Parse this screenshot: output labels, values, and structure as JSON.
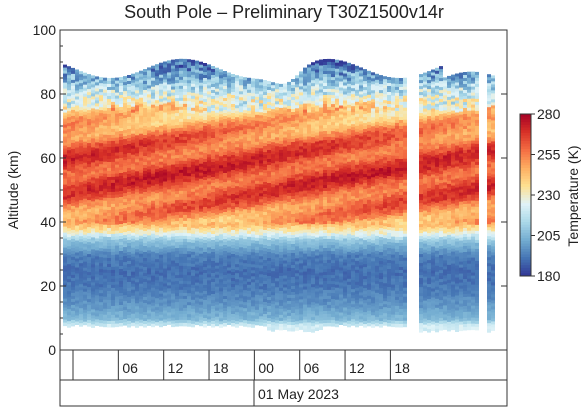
{
  "chart_data": {
    "type": "heatmap",
    "title": "South Pole – Preliminary T30Z1500v14r",
    "ylabel": "Altitude (km)",
    "ylim": [
      0,
      100
    ],
    "yticks": [
      "0",
      "20",
      "40",
      "60",
      "80",
      "100"
    ],
    "xticks": [
      "06",
      "12",
      "18",
      "00",
      "06",
      "12",
      "18"
    ],
    "date_label": "01 May 2023",
    "colorbar": {
      "label": "Temperature (K)",
      "range": [
        180,
        280
      ],
      "ticks": [
        "180",
        "205",
        "230",
        "255",
        "280"
      ],
      "colors": [
        "#313695",
        "#4575b4",
        "#74add1",
        "#abd9e9",
        "#e0f3f8",
        "#fee090",
        "#fdae61",
        "#f46d43",
        "#d73027",
        "#a50026"
      ]
    },
    "grid": false,
    "profile": [
      {
        "altitude": 8,
        "temperature": 222
      },
      {
        "altitude": 10,
        "temperature": 205
      },
      {
        "altitude": 15,
        "temperature": 197
      },
      {
        "altitude": 20,
        "temperature": 192
      },
      {
        "altitude": 25,
        "temperature": 190
      },
      {
        "altitude": 30,
        "temperature": 193
      },
      {
        "altitude": 35,
        "temperature": 210
      },
      {
        "altitude": 37,
        "temperature": 228
      },
      {
        "altitude": 40,
        "temperature": 246
      },
      {
        "altitude": 45,
        "temperature": 256
      },
      {
        "altitude": 50,
        "temperature": 262
      },
      {
        "altitude": 55,
        "temperature": 266
      },
      {
        "altitude": 60,
        "temperature": 264
      },
      {
        "altitude": 65,
        "temperature": 260
      },
      {
        "altitude": 70,
        "temperature": 250
      },
      {
        "altitude": 75,
        "temperature": 238
      },
      {
        "altitude": 80,
        "temperature": 222
      },
      {
        "altitude": 85,
        "temperature": 205
      },
      {
        "altitude": 90,
        "temperature": 190
      }
    ],
    "data_gaps_hours": [
      [
        44.5,
        45.5
      ],
      [
        54.3,
        54.8
      ]
    ]
  }
}
